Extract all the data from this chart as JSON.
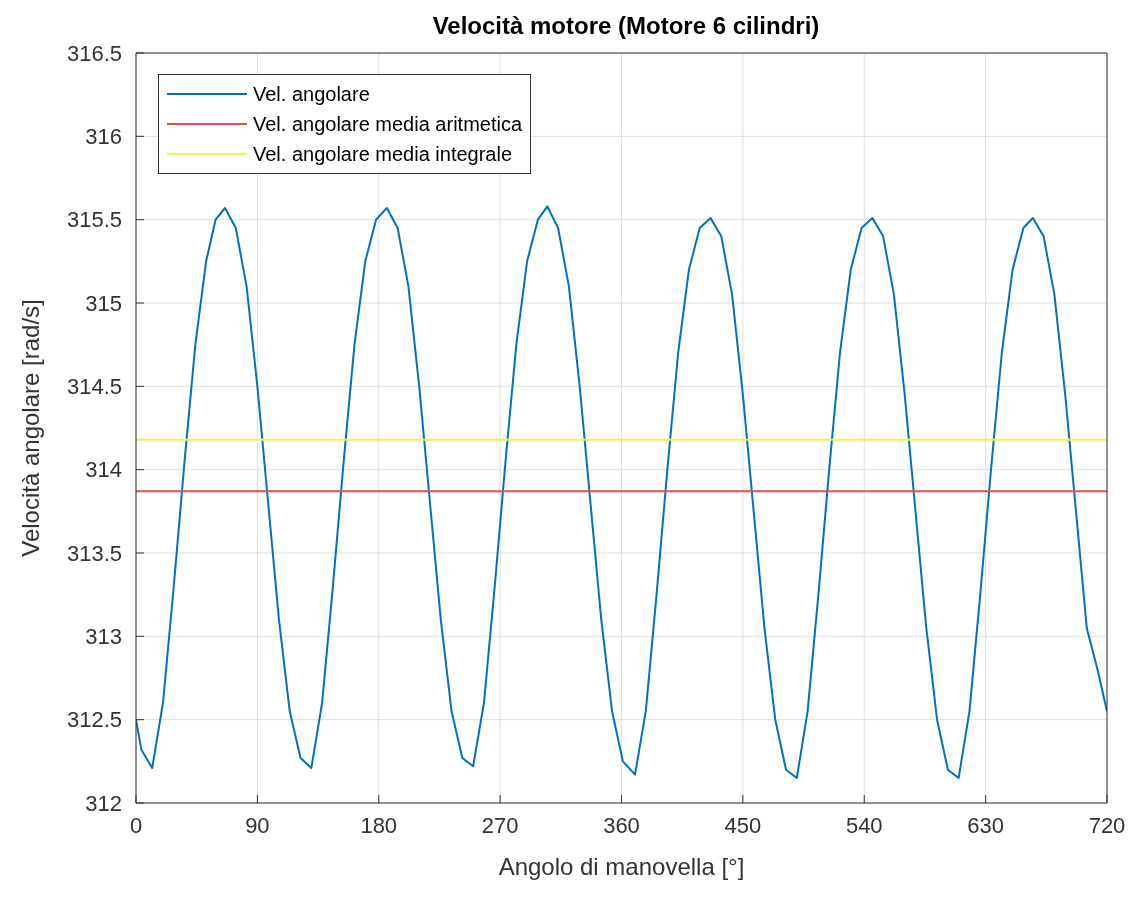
{
  "chart_data": {
    "type": "line",
    "title": "Velocità motore (Motore 6 cilindri)",
    "xlabel": "Angolo di manovella [°]",
    "ylabel": "Velocità angolare [rad/s]",
    "xlim": [
      0,
      720
    ],
    "xticks": [
      0,
      90,
      180,
      270,
      360,
      450,
      540,
      630,
      720
    ],
    "ylim": [
      312,
      316.5
    ],
    "yticks": [
      312,
      312.5,
      313,
      313.5,
      314,
      314.5,
      315,
      315.5,
      316,
      316.5
    ],
    "grid": true,
    "legend": "top left",
    "line_style": "solid",
    "marker": "none",
    "series": [
      {
        "name": "Vel. angolare",
        "color": "#0072bd",
        "x": [
          0,
          4,
          12,
          20,
          28,
          36,
          44,
          52,
          59,
          66,
          74,
          82,
          90,
          98,
          106,
          114,
          122,
          130,
          138,
          146,
          154,
          162,
          170,
          178,
          186,
          194,
          202,
          210,
          218,
          226,
          234,
          242,
          250,
          258,
          266,
          274,
          282,
          290,
          298,
          305,
          313,
          321,
          329,
          337,
          345,
          353,
          361,
          370,
          378,
          386,
          394,
          402,
          410,
          418,
          426,
          434,
          442,
          450,
          458,
          466,
          474,
          482,
          490,
          498,
          506,
          514,
          522,
          530,
          538,
          546,
          554,
          562,
          570,
          578,
          586,
          594,
          602,
          610,
          618,
          626,
          634,
          642,
          650,
          658,
          665,
          673,
          681,
          689,
          697,
          705,
          713,
          720
        ],
        "values": [
          312.5,
          312.32,
          312.21,
          312.6,
          313.3,
          314.05,
          314.75,
          315.25,
          315.5,
          315.57,
          315.45,
          315.1,
          314.5,
          313.8,
          313.1,
          312.55,
          312.27,
          312.21,
          312.6,
          313.3,
          314.05,
          314.75,
          315.25,
          315.5,
          315.57,
          315.45,
          315.1,
          314.5,
          313.8,
          313.1,
          312.55,
          312.27,
          312.22,
          312.6,
          313.3,
          314.05,
          314.75,
          315.25,
          315.5,
          315.58,
          315.45,
          315.1,
          314.5,
          313.8,
          313.1,
          312.55,
          312.25,
          312.17,
          312.55,
          313.25,
          314.0,
          314.7,
          315.2,
          315.45,
          315.51,
          315.4,
          315.05,
          314.45,
          313.75,
          313.05,
          312.5,
          312.2,
          312.15,
          312.55,
          313.25,
          314.0,
          314.7,
          315.2,
          315.45,
          315.51,
          315.4,
          315.05,
          314.45,
          313.75,
          313.05,
          312.5,
          312.2,
          312.15,
          312.55,
          313.25,
          314.0,
          314.7,
          315.2,
          315.45,
          315.51,
          315.4,
          315.05,
          314.45,
          313.75,
          313.05,
          312.8,
          312.55
        ]
      },
      {
        "name": "Vel. angolare media aritmetica",
        "color": "#d95350",
        "x": [
          0,
          720
        ],
        "values": [
          313.87,
          313.87
        ]
      },
      {
        "name": "Vel. angolare media integrale",
        "color": "#f0f050",
        "x": [
          0,
          720
        ],
        "values": [
          314.18,
          314.18
        ]
      }
    ]
  }
}
